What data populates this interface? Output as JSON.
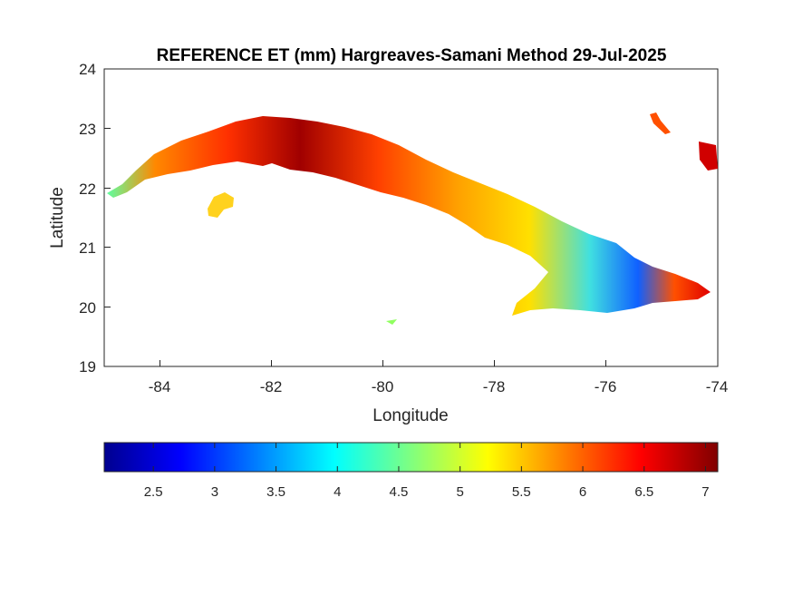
{
  "chart_data": {
    "type": "heatmap",
    "title": "REFERENCE ET (mm) Hargreaves-Samani Method  29-Jul-2025",
    "xlabel": "Longitude",
    "ylabel": "Latitude",
    "xlim": [
      -85,
      -74
    ],
    "ylim": [
      19,
      24
    ],
    "xticks": [
      "-84",
      "-82",
      "-80",
      "-78",
      "-76",
      "-74"
    ],
    "yticks": [
      "24",
      "23",
      "22",
      "21",
      "20",
      "19"
    ],
    "colorbar": {
      "colormap": "jet",
      "clim": [
        2.1,
        7.1
      ],
      "ticks": [
        "2.5",
        "3",
        "3.5",
        "4",
        "4.5",
        "5",
        "5.5",
        "6",
        "6.5",
        "7"
      ]
    }
  }
}
